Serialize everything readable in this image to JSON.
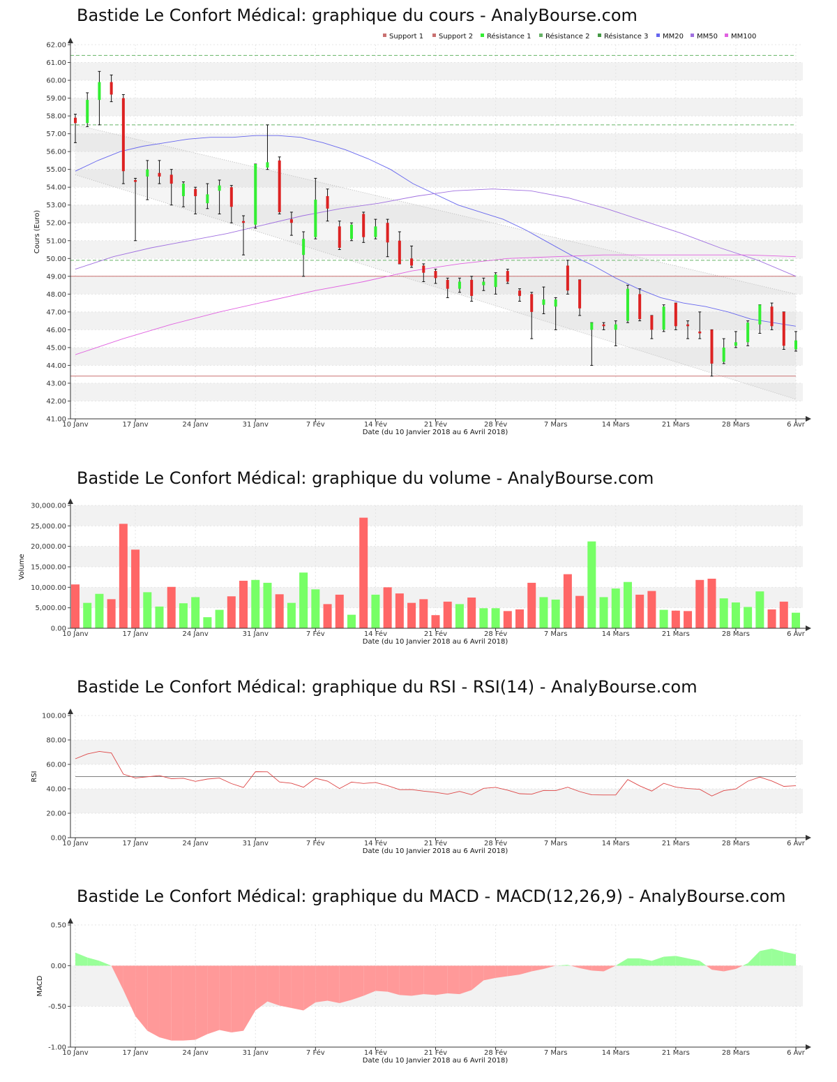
{
  "titles": {
    "price": "Bastide Le Confort Médical: graphique du cours - AnalyBourse.com",
    "volume": "Bastide Le Confort Médical: graphique du volume - AnalyBourse.com",
    "rsi": "Bastide Le Confort Médical: graphique du RSI - RSI(14) - AnalyBourse.com",
    "macd": "Bastide Le Confort Médical: graphique du MACD - MACD(12,26,9) - AnalyBourse.com"
  },
  "colors": {
    "up": "#33ee33",
    "down": "#dd2222",
    "vol_up": "#77ff66",
    "vol_down": "#ff6666",
    "support": "#c97070",
    "resistance": "#66b366",
    "mm20": "#6666ee",
    "mm50": "#a070e0",
    "mm100": "#e060e0",
    "rsi_line": "#dd4444",
    "macd_pos": "#99ff99",
    "macd_neg": "#ff9999"
  },
  "chart_data": [
    {
      "type": "candlestick",
      "title": "Bastide Le Confort Médical: graphique du cours - AnalyBourse.com",
      "xlabel": "Date (du 10 Janvier 2018 au 6 Avril 2018)",
      "ylabel": "Cours (Euro)",
      "ylim": [
        41,
        62
      ],
      "yticks": [
        "41.00",
        "42.00",
        "43.00",
        "44.00",
        "45.00",
        "46.00",
        "47.00",
        "48.00",
        "49.00",
        "50.00",
        "51.00",
        "52.00",
        "53.00",
        "54.00",
        "55.00",
        "56.00",
        "57.00",
        "58.00",
        "59.00",
        "60.00",
        "61.00",
        "62.00"
      ],
      "xticks": [
        "10 Janv",
        "17 Janv",
        "24 Janv",
        "31 Janv",
        "7 Fév",
        "14 Fév",
        "21 Fév",
        "28 Fév",
        "7 Mars",
        "14 Mars",
        "21 Mars",
        "28 Mars",
        "6 Avr"
      ],
      "legend": [
        "Support 1",
        "Support 2",
        "Résistance 1",
        "Résistance 2",
        "Résistance 3",
        "MM20",
        "MM50",
        "MM100"
      ],
      "levels": {
        "support1": 43.4,
        "support2": 49.0,
        "resistance1": 49.9,
        "resistance2": 57.5,
        "resistance3": 61.4
      },
      "candles": [
        [
          57.9,
          57.6,
          58.1,
          56.5
        ],
        [
          57.6,
          58.9,
          59.3,
          57.4
        ],
        [
          58.9,
          59.9,
          60.5,
          57.5
        ],
        [
          59.9,
          59.2,
          60.3,
          58.8
        ],
        [
          59.0,
          54.9,
          59.2,
          54.2
        ],
        [
          54.4,
          54.3,
          54.5,
          51.0
        ],
        [
          54.6,
          55.0,
          55.5,
          53.3
        ],
        [
          54.8,
          54.6,
          55.5,
          54.2
        ],
        [
          54.7,
          54.2,
          55.0,
          53.0
        ],
        [
          53.5,
          54.2,
          54.3,
          52.9
        ],
        [
          53.9,
          53.5,
          54.0,
          52.5
        ],
        [
          53.1,
          53.6,
          54.2,
          52.8
        ],
        [
          53.8,
          54.1,
          54.4,
          52.5
        ],
        [
          54.0,
          52.9,
          54.1,
          52.0
        ],
        [
          52.1,
          52.0,
          52.4,
          50.2
        ],
        [
          51.9,
          55.3,
          55.3,
          51.7
        ],
        [
          55.1,
          55.4,
          57.5,
          55.0
        ],
        [
          55.5,
          52.6,
          55.7,
          52.5
        ],
        [
          52.2,
          52.0,
          52.6,
          51.3
        ],
        [
          50.2,
          51.1,
          51.5,
          49.0
        ],
        [
          51.2,
          53.3,
          54.5,
          51.1
        ],
        [
          53.5,
          52.8,
          53.9,
          52.1
        ],
        [
          51.8,
          50.6,
          52.1,
          50.5
        ],
        [
          51.1,
          51.9,
          52.0,
          51.0
        ],
        [
          52.5,
          51.2,
          52.6,
          50.9
        ],
        [
          51.2,
          51.8,
          52.2,
          51.1
        ],
        [
          52.0,
          50.9,
          52.2,
          50.1
        ],
        [
          51.0,
          49.7,
          51.5,
          49.7
        ],
        [
          50.0,
          49.6,
          50.7,
          49.5
        ],
        [
          49.6,
          49.2,
          49.7,
          48.7
        ],
        [
          49.3,
          48.9,
          49.4,
          48.6
        ],
        [
          48.8,
          48.3,
          48.9,
          47.8
        ],
        [
          48.3,
          48.7,
          48.9,
          48.1
        ],
        [
          48.8,
          47.9,
          49.0,
          47.6
        ],
        [
          48.5,
          48.7,
          48.9,
          48.2
        ],
        [
          48.4,
          49.1,
          49.2,
          48.0
        ],
        [
          49.3,
          48.7,
          49.4,
          48.6
        ],
        [
          48.2,
          47.9,
          48.3,
          47.6
        ],
        [
          48.0,
          47.0,
          48.1,
          45.5
        ],
        [
          47.4,
          47.7,
          48.4,
          46.9
        ],
        [
          47.3,
          47.7,
          47.8,
          46.0
        ],
        [
          49.6,
          48.2,
          49.9,
          48.0
        ],
        [
          48.8,
          47.2,
          48.8,
          46.8
        ],
        [
          46.0,
          46.4,
          46.4,
          44.0
        ],
        [
          46.3,
          46.2,
          46.4,
          46.0
        ],
        [
          46.0,
          46.3,
          46.5,
          45.1
        ],
        [
          46.5,
          48.3,
          48.5,
          46.4
        ],
        [
          48.0,
          46.6,
          48.3,
          46.5
        ],
        [
          46.8,
          46.0,
          46.8,
          45.5
        ],
        [
          46.0,
          47.3,
          47.4,
          45.9
        ],
        [
          47.5,
          46.2,
          47.5,
          46.0
        ],
        [
          46.3,
          46.2,
          46.5,
          45.5
        ],
        [
          45.9,
          45.8,
          47.0,
          45.5
        ],
        [
          46.0,
          44.1,
          46.0,
          43.4
        ],
        [
          44.2,
          45.0,
          45.5,
          44.1
        ],
        [
          45.1,
          45.3,
          45.9,
          45.0
        ],
        [
          45.3,
          46.4,
          46.5,
          45.1
        ],
        [
          46.3,
          47.4,
          47.4,
          45.8
        ],
        [
          47.3,
          46.2,
          47.5,
          46.0
        ],
        [
          47.0,
          45.1,
          47.0,
          44.9
        ],
        [
          44.9,
          45.4,
          45.9,
          44.8
        ]
      ],
      "mm20": [
        54.9,
        55.5,
        56.0,
        56.3,
        56.5,
        56.7,
        56.8,
        56.8,
        56.9,
        56.9,
        56.8,
        56.5,
        56.1,
        55.6,
        55.0,
        54.2,
        53.6,
        53.0,
        52.6,
        52.2,
        51.6,
        50.9,
        50.2,
        49.6,
        48.9,
        48.3,
        47.8,
        47.5,
        47.3,
        47.0,
        46.6,
        46.4,
        46.2
      ],
      "mm50": [
        49.4,
        50.1,
        50.6,
        51.0,
        51.4,
        51.9,
        52.4,
        52.8,
        53.1,
        53.5,
        53.8,
        53.9,
        53.8,
        53.4,
        52.8,
        52.1,
        51.4,
        50.6,
        49.9,
        49.0
      ],
      "mm100": [
        44.6,
        45.5,
        46.3,
        47.0,
        47.6,
        48.2,
        48.7,
        49.3,
        49.7,
        50.0,
        50.1,
        50.2,
        50.2,
        50.2,
        50.2,
        50.1
      ],
      "trend_upper": [
        57.5,
        48.0
      ],
      "trend_lower": [
        54.7,
        42.1
      ]
    },
    {
      "type": "bar",
      "title": "Bastide Le Confort Médical: graphique du volume - AnalyBourse.com",
      "xlabel": "Date (du 10 Janvier 2018 au 6 Avril 2018)",
      "ylabel": "Volume",
      "ylim": [
        0,
        30000
      ],
      "yticks": [
        "0.00",
        "5,000.00",
        "10,000.00",
        "15,000.00",
        "20,000.00",
        "25,000.00",
        "30,000.00"
      ],
      "xticks": [
        "10 Janv",
        "17 Janv",
        "24 Janv",
        "31 Janv",
        "7 Fév",
        "14 Fév",
        "21 Fév",
        "28 Fév",
        "7 Mars",
        "14 Mars",
        "21 Mars",
        "28 Mars",
        "6 Avr"
      ],
      "values": [
        10700,
        6200,
        8400,
        7100,
        25500,
        19200,
        8800,
        5300,
        10100,
        6100,
        7600,
        2700,
        4500,
        7800,
        11600,
        11800,
        11100,
        8300,
        6200,
        13600,
        9500,
        5900,
        8200,
        3300,
        27000,
        8200,
        10000,
        8500,
        6200,
        7100,
        3200,
        6500,
        5900,
        7500,
        4900,
        4900,
        4200,
        4600,
        11100,
        7600,
        7000,
        13200,
        7900,
        21200,
        7600,
        9700,
        11300,
        8200,
        9100,
        4500,
        4300,
        4200,
        11800,
        12100,
        7300,
        6300,
        5200,
        9000,
        4600,
        6500,
        3800
      ],
      "up": [
        false,
        true,
        true,
        false,
        false,
        false,
        true,
        true,
        false,
        true,
        true,
        true,
        true,
        false,
        false,
        true,
        true,
        false,
        true,
        true,
        true,
        false,
        false,
        true,
        false,
        true,
        false,
        false,
        false,
        false,
        false,
        false,
        true,
        false,
        true,
        true,
        false,
        false,
        false,
        true,
        true,
        false,
        false,
        true,
        true,
        true,
        true,
        false,
        false,
        true,
        false,
        false,
        false,
        false,
        true,
        true,
        true,
        true,
        false,
        false,
        true
      ]
    },
    {
      "type": "line",
      "title": "Bastide Le Confort Médical: graphique du RSI - RSI(14) - AnalyBourse.com",
      "xlabel": "Date (du 10 Janvier 2018 au 6 Avril 2018)",
      "ylabel": "RSI",
      "ylim": [
        0,
        100
      ],
      "yticks": [
        "0.00",
        "20.00",
        "40.00",
        "60.00",
        "80.00",
        "100.00"
      ],
      "xticks": [
        "10 Janv",
        "17 Janv",
        "24 Janv",
        "31 Janv",
        "7 Fév",
        "14 Fév",
        "21 Fév",
        "28 Fév",
        "7 Mars",
        "14 Mars",
        "21 Mars",
        "28 Mars",
        "6 Avr"
      ],
      "reference": 50,
      "values": [
        64.6,
        68.5,
        70.6,
        69.3,
        52.0,
        48.9,
        49.8,
        50.8,
        48.3,
        48.6,
        46.1,
        48.0,
        48.8,
        44.3,
        41.1,
        54.0,
        53.9,
        45.6,
        44.5,
        41.3,
        48.6,
        46.3,
        40.2,
        45.5,
        44.4,
        45.2,
        42.6,
        39.3,
        39.4,
        38.1,
        37.1,
        35.6,
        37.9,
        35.2,
        40.4,
        41.2,
        38.9,
        36.0,
        35.6,
        38.7,
        38.5,
        41.3,
        37.7,
        35.1,
        35.0,
        35.0,
        47.6,
        42.4,
        38.2,
        44.5,
        41.4,
        40.2,
        39.6,
        34.1,
        38.5,
        39.9,
        46.2,
        49.6,
        46.4,
        42.0,
        42.5
      ]
    },
    {
      "type": "area",
      "title": "Bastide Le Confort Médical: graphique du MACD - MACD(12,26,9) - AnalyBourse.com",
      "xlabel": "Date (du 10 Janvier 2018 au 6 Avril 2018)",
      "ylabel": "MACD",
      "ylim": [
        -1.0,
        0.5
      ],
      "yticks": [
        "-1.00",
        "-0.50",
        "0.00",
        "0.50"
      ],
      "xticks": [
        "10 Janv",
        "17 Janv",
        "24 Janv",
        "31 Janv",
        "7 Fév",
        "14 Fév",
        "21 Fév",
        "28 Fév",
        "7 Mars",
        "14 Mars",
        "21 Mars",
        "28 Mars",
        "6 Avr"
      ],
      "values": [
        0.16,
        0.1,
        0.06,
        0.0,
        -0.3,
        -0.62,
        -0.8,
        -0.88,
        -0.92,
        -0.92,
        -0.91,
        -0.84,
        -0.79,
        -0.82,
        -0.8,
        -0.55,
        -0.44,
        -0.49,
        -0.52,
        -0.55,
        -0.45,
        -0.43,
        -0.46,
        -0.42,
        -0.37,
        -0.31,
        -0.32,
        -0.36,
        -0.37,
        -0.35,
        -0.36,
        -0.34,
        -0.35,
        -0.3,
        -0.18,
        -0.15,
        -0.13,
        -0.11,
        -0.07,
        -0.04,
        0.0,
        0.01,
        -0.03,
        -0.06,
        -0.07,
        0.0,
        0.09,
        0.09,
        0.06,
        0.11,
        0.12,
        0.09,
        0.06,
        -0.05,
        -0.07,
        -0.04,
        0.03,
        0.18,
        0.21,
        0.17,
        0.14
      ]
    }
  ]
}
